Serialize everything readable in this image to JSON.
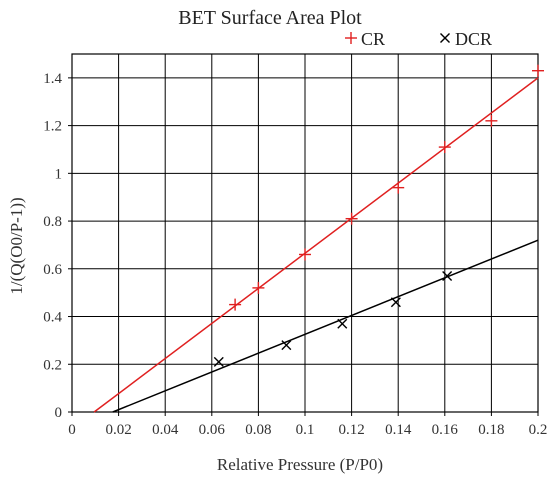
{
  "chart_data": {
    "type": "scatter",
    "title": "BET Surface Area Plot",
    "xlabel": "Relative Pressure (P/P0)",
    "ylabel": "1/(Q(O0/P-1))",
    "xlim": [
      0,
      0.2
    ],
    "ylim": [
      0,
      1.5
    ],
    "x_ticks": [
      0,
      0.02,
      0.04,
      0.06,
      0.08,
      0.1,
      0.12,
      0.14,
      0.16,
      0.18,
      0.2
    ],
    "x_tick_labels": [
      "0",
      "0.02",
      "0.04",
      "0.06",
      "0.08",
      "0.1",
      "0.12",
      "0.14",
      "0.16",
      "0.18",
      "0.2"
    ],
    "y_ticks": [
      0,
      0.2,
      0.4,
      0.6,
      0.8,
      1,
      1.2,
      1.4
    ],
    "y_tick_labels": [
      "0",
      "0.2",
      "0.4",
      "0.6",
      "0.8",
      "1",
      "1.2",
      "1.4"
    ],
    "grid": true,
    "legend_position": "top-right",
    "series": [
      {
        "name": "CR",
        "color": "#e02020",
        "marker": "plus",
        "x": [
          0.07,
          0.08,
          0.1,
          0.12,
          0.14,
          0.16,
          0.18,
          0.2
        ],
        "y": [
          0.45,
          0.52,
          0.66,
          0.81,
          0.94,
          1.11,
          1.22,
          1.43
        ],
        "fit_line": {
          "x": [
            0.0095,
            0.2
          ],
          "y": [
            0.0,
            1.4
          ]
        }
      },
      {
        "name": "DCR",
        "color": "#000000",
        "marker": "cross",
        "x": [
          0.063,
          0.092,
          0.116,
          0.139,
          0.161
        ],
        "y": [
          0.21,
          0.28,
          0.37,
          0.46,
          0.57
        ],
        "fit_line": {
          "x": [
            0.0175,
            0.2
          ],
          "y": [
            0.0,
            0.72
          ]
        }
      }
    ]
  }
}
